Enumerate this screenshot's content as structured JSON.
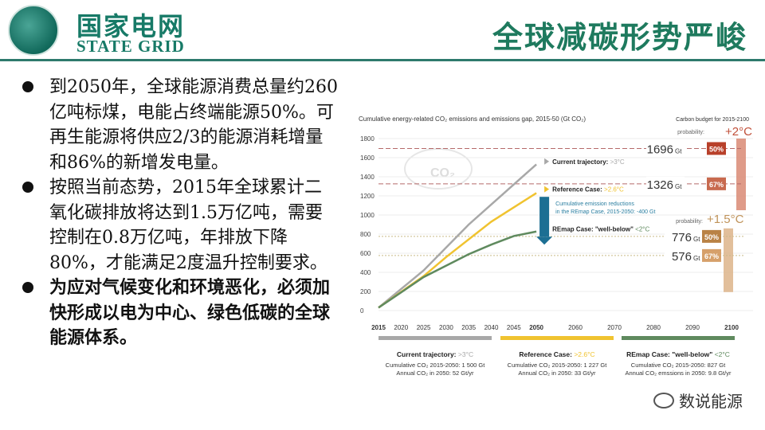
{
  "header": {
    "logo_cn": "国家电网",
    "logo_en": "STATE GRID",
    "logo_seal": "国家电网公司 STATE GRID CORPORATION OF CHINA",
    "title": "全球减碳形势严峻"
  },
  "bullets": [
    {
      "text": "到2050年，全球能源消费总量约260亿吨标煤，电能占终端能源50%。可再生能源将供应2/3的能源消耗增量和86%的新增发电量。",
      "bold": false
    },
    {
      "text": "按照当前态势，2015年全球累计二氧化碳排放将达到1.5万亿吨，需要控制在0.8万亿吨，年排放下降80%，才能满足2度温升控制要求。",
      "bold": false
    },
    {
      "text": "为应对气候变化和环境恶化，必须加快形成以电为中心、绿色低碳的全球能源体系。",
      "bold": true
    }
  ],
  "watermark": "数说能源",
  "chart_data": {
    "type": "line",
    "title": "Cumulative energy-related CO₂ emissions and emissions gap, 2015-50 (Gt CO₂)",
    "right_title": "Carbon budget for 2015-2100",
    "xticks": [
      2015,
      2020,
      2025,
      2030,
      2035,
      2040,
      2045,
      2050,
      2060,
      2070,
      2080,
      2090,
      2100
    ],
    "yticks": [
      0,
      200,
      400,
      600,
      800,
      1000,
      1200,
      1400,
      1600,
      1800
    ],
    "ylim": [
      0,
      1800
    ],
    "xlim": [
      2015,
      2100
    ],
    "cloud_label": "CO₂",
    "series": [
      {
        "name": "Current trajectory:",
        "temp": ">3°C",
        "color": "#a8a8a8",
        "x": [
          2015,
          2025,
          2035,
          2050
        ],
        "y": [
          30,
          420,
          900,
          1530
        ]
      },
      {
        "name": "Reference Case:",
        "temp": ">2.6°C",
        "color": "#f0c330",
        "x": [
          2015,
          2025,
          2030,
          2040,
          2050
        ],
        "y": [
          30,
          360,
          560,
          930,
          1230
        ]
      },
      {
        "name": "REmap Case: \"well-below\"",
        "temp": "<2°C",
        "color": "#5f8a5e",
        "x": [
          2015,
          2025,
          2030,
          2035,
          2040,
          2045,
          2050
        ],
        "y": [
          30,
          350,
          470,
          590,
          690,
          780,
          827
        ]
      }
    ],
    "reduction_note": [
      "Cumulative emission reductions",
      "in the REmap Case, 2015-2050: -400 Gt"
    ],
    "budgets": [
      {
        "value": 1696,
        "label": "1696",
        "unit": "Gt",
        "prob": "50%",
        "target": "+2°C",
        "color": "#b8402a"
      },
      {
        "value": 1326,
        "label": "1326",
        "unit": "Gt",
        "prob": "67%",
        "target": "+2°C",
        "color": "#c86a4f"
      },
      {
        "value": 776,
        "label": "776",
        "unit": "Gt",
        "prob": "50%",
        "target": "+1.5°C",
        "color": "#b98245"
      },
      {
        "value": 576,
        "label": "576",
        "unit": "Gt",
        "prob": "67%",
        "target": "+1.5°C",
        "color": "#d6a06a"
      }
    ],
    "probability_label": "probability:",
    "targets": [
      "+2°C",
      "+1.5°C"
    ],
    "summaries": [
      {
        "name": "Current trajectory:",
        "temp": ">3°C",
        "color": "#a8a8a8",
        "line1": "Cumulative CO₂ 2015-2050: 1 500 Gt",
        "line2": "Annual CO₂ in 2050: 52 Gt/yr"
      },
      {
        "name": "Reference Case:",
        "temp": ">2.6°C",
        "color": "#f0c330",
        "line1": "Cumulative CO₂ 2015-2050: 1 227 Gt",
        "line2": "Annual CO₂ in 2050: 33 Gt/yr"
      },
      {
        "name": "REmap Case: \"well-below\"",
        "temp": "<2°C",
        "color": "#5f8a5e",
        "line1": "Cumulative CO₂ 2015-2050: 827 Gt",
        "line2": "Annual CO₂ emssions in 2050: 9.8 Gt/yr"
      }
    ]
  }
}
